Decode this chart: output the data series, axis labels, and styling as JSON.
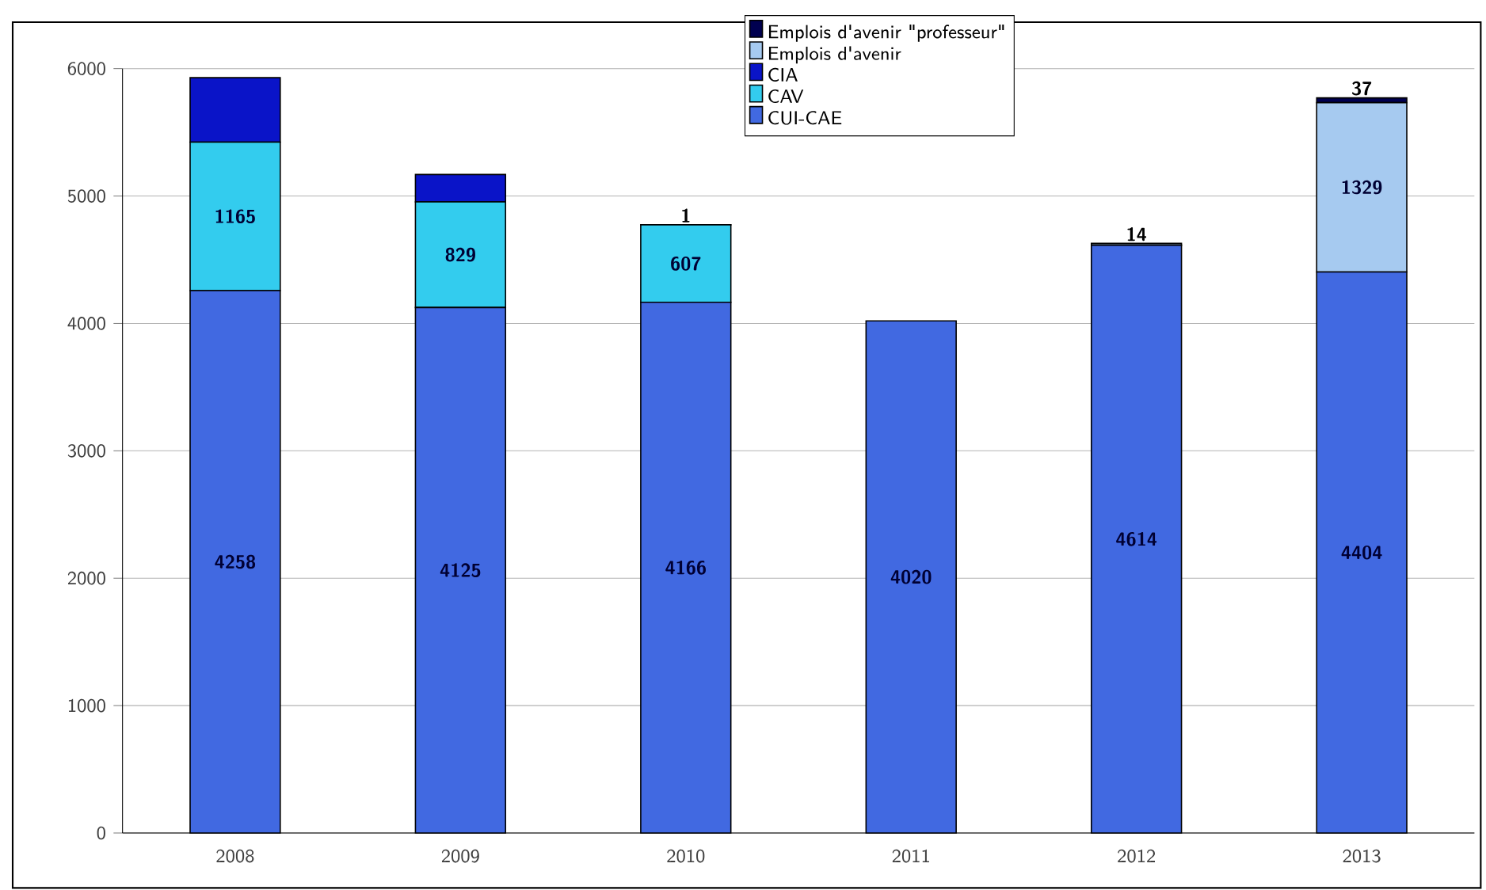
{
  "chart_data": {
    "type": "bar",
    "stacked": true,
    "categories": [
      "2008",
      "2009",
      "2010",
      "2011",
      "2012",
      "2013"
    ],
    "series": [
      {
        "name": "CUI-CAE",
        "color": "#4169e1",
        "values": [
          4258,
          4125,
          4166,
          4020,
          4614,
          4404
        ],
        "value_labels": [
          "4258",
          "4125",
          "4166",
          "4020",
          "4614",
          "4404"
        ]
      },
      {
        "name": "CAV",
        "color": "#33ccee",
        "values": [
          1165,
          829,
          607,
          null,
          null,
          null
        ],
        "value_labels": [
          "1165",
          "829",
          "607",
          null,
          null,
          null
        ]
      },
      {
        "name": "CIA",
        "color": "#0a14c8",
        "values": [
          506,
          215,
          1,
          null,
          null,
          null
        ],
        "value_labels": [
          null,
          null,
          "1",
          null,
          null,
          null
        ]
      },
      {
        "name": "Emplois d'avenir",
        "color": "#a6caf0",
        "values": [
          null,
          null,
          null,
          null,
          14,
          1329
        ],
        "value_labels": [
          null,
          null,
          null,
          null,
          "14",
          "1329"
        ]
      },
      {
        "name": "Emplois d'avenir \"professeur\"",
        "color": "#000050",
        "values": [
          null,
          null,
          null,
          null,
          null,
          37
        ],
        "value_labels": [
          null,
          null,
          null,
          null,
          null,
          "37"
        ]
      }
    ],
    "ylim": [
      0,
      6000
    ],
    "yticks": [
      0,
      1000,
      2000,
      3000,
      4000,
      5000,
      6000
    ],
    "grid": "y",
    "legend": "top"
  }
}
